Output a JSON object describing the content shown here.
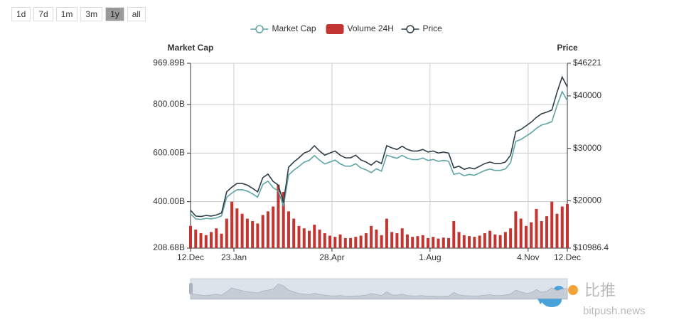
{
  "ui": {
    "ranges": [
      "1d",
      "7d",
      "1m",
      "3m",
      "1y",
      "all"
    ],
    "active_range": "1y"
  },
  "chart_data": {
    "type": "combo",
    "y_axis_title": "Market Cap",
    "y2_axis_title": "Price",
    "x": [
      0,
      5,
      10,
      15,
      20,
      25,
      30,
      35,
      40,
      45,
      50,
      55,
      60,
      65,
      70,
      75,
      80,
      85,
      90,
      95,
      100,
      105,
      110,
      115,
      120,
      125,
      130,
      135,
      140,
      145,
      150,
      155,
      160,
      165,
      170,
      175,
      180,
      185,
      190,
      195,
      200,
      205,
      210,
      215,
      220,
      225,
      230,
      235,
      240,
      245,
      250,
      255,
      260,
      265,
      270,
      275,
      280,
      285,
      290,
      295,
      300,
      305,
      310,
      315,
      320,
      325,
      330,
      335,
      340,
      345,
      350,
      355,
      360,
      365
    ],
    "xlim": [
      0,
      365
    ],
    "xticks": [
      {
        "value": 0,
        "label": "12.Dec"
      },
      {
        "value": 42,
        "label": "23.Jan"
      },
      {
        "value": 137,
        "label": "28.Apr"
      },
      {
        "value": 232,
        "label": "1.Aug"
      },
      {
        "value": 327,
        "label": "4.Nov"
      },
      {
        "value": 365,
        "label": "12.Dec"
      }
    ],
    "ylim": [
      208.68,
      969.89
    ],
    "yticks": [
      {
        "value": 208.68,
        "label": "208.68B"
      },
      {
        "value": 400,
        "label": "400.00B"
      },
      {
        "value": 600,
        "label": "600.00B"
      },
      {
        "value": 800,
        "label": "800.00B"
      },
      {
        "value": 969.89,
        "label": "969.89B"
      }
    ],
    "y2lim": [
      10986.4,
      46221
    ],
    "y2ticks": [
      {
        "value": 10986.4,
        "label": "$10986.4"
      },
      {
        "value": 20000,
        "label": "$20000"
      },
      {
        "value": 30000,
        "label": "$30000"
      },
      {
        "value": 40000,
        "label": "$40000"
      },
      {
        "value": 46221,
        "label": "$46221"
      }
    ],
    "grid": true,
    "series": [
      {
        "name": "Market Cap",
        "type": "line",
        "color": "#5fa4a4",
        "values": [
          350.0,
          328.9,
          327.1,
          331.0,
          329.2,
          333.1,
          340.9,
          418.0,
          435.4,
          449.0,
          449.2,
          443.5,
          432.0,
          418.6,
          470.8,
          484.4,
          457.5,
          444.1,
          380.5,
          510.0,
          529.5,
          545.0,
          562.6,
          570.4,
          589.9,
          570.7,
          555.4,
          563.3,
          571.1,
          555.8,
          546.2,
          546.3,
          556.2,
          538.9,
          531.2,
          519.7,
          535.4,
          525.8,
          591.9,
          584.3,
          578.6,
          590.4,
          578.9,
          573.2,
          573.3,
          579.3,
          569.7,
          573.7,
          566.1,
          570.1,
          566.4,
          512.0,
          518.0,
          506.4,
          512.3,
          508.6,
          518.4,
          528.3,
          534.3,
          528.6,
          528.7,
          534.7,
          560.2,
          648.2,
          656.1,
          670.0,
          683.8,
          701.6,
          715.4,
          721.4,
          729.4,
          796.1,
          853.0,
          816.1
        ]
      },
      {
        "name": "Volume 24H",
        "type": "bar",
        "color": "#c23531",
        "values": [
          300,
          285,
          270,
          262,
          275,
          290,
          268,
          330,
          400,
          372,
          350,
          330,
          320,
          310,
          345,
          360,
          380,
          470,
          440,
          360,
          330,
          300,
          290,
          280,
          305,
          285,
          270,
          260,
          255,
          265,
          250,
          250,
          255,
          260,
          270,
          300,
          285,
          262,
          330,
          275,
          270,
          290,
          265,
          255,
          258,
          262,
          250,
          255,
          248,
          252,
          250,
          320,
          275,
          262,
          258,
          255,
          260,
          270,
          280,
          265,
          262,
          275,
          290,
          360,
          330,
          300,
          315,
          370,
          320,
          340,
          400,
          350,
          380,
          390
        ]
      },
      {
        "name": "Price",
        "type": "line",
        "axis": "y2",
        "color": "#2f3e48",
        "values": [
          18200,
          17100,
          17000,
          17200,
          17100,
          17300,
          17700,
          21700,
          22600,
          23300,
          23300,
          23000,
          22400,
          21700,
          24400,
          25100,
          23700,
          23000,
          19700,
          26400,
          27400,
          28200,
          29100,
          29500,
          30500,
          29500,
          28700,
          29100,
          29500,
          28700,
          28200,
          28200,
          28700,
          27800,
          27400,
          26800,
          27600,
          27100,
          30500,
          30100,
          29800,
          30400,
          29800,
          29500,
          29500,
          29800,
          29300,
          29500,
          29100,
          29300,
          29100,
          26300,
          26600,
          26000,
          26300,
          26100,
          26600,
          27100,
          27400,
          27100,
          27100,
          27400,
          28700,
          33200,
          33600,
          34300,
          35000,
          35900,
          36600,
          36900,
          37300,
          40700,
          43600,
          41700
        ]
      }
    ]
  },
  "watermark": {
    "brand": "比推",
    "site": "bitpush.news"
  }
}
